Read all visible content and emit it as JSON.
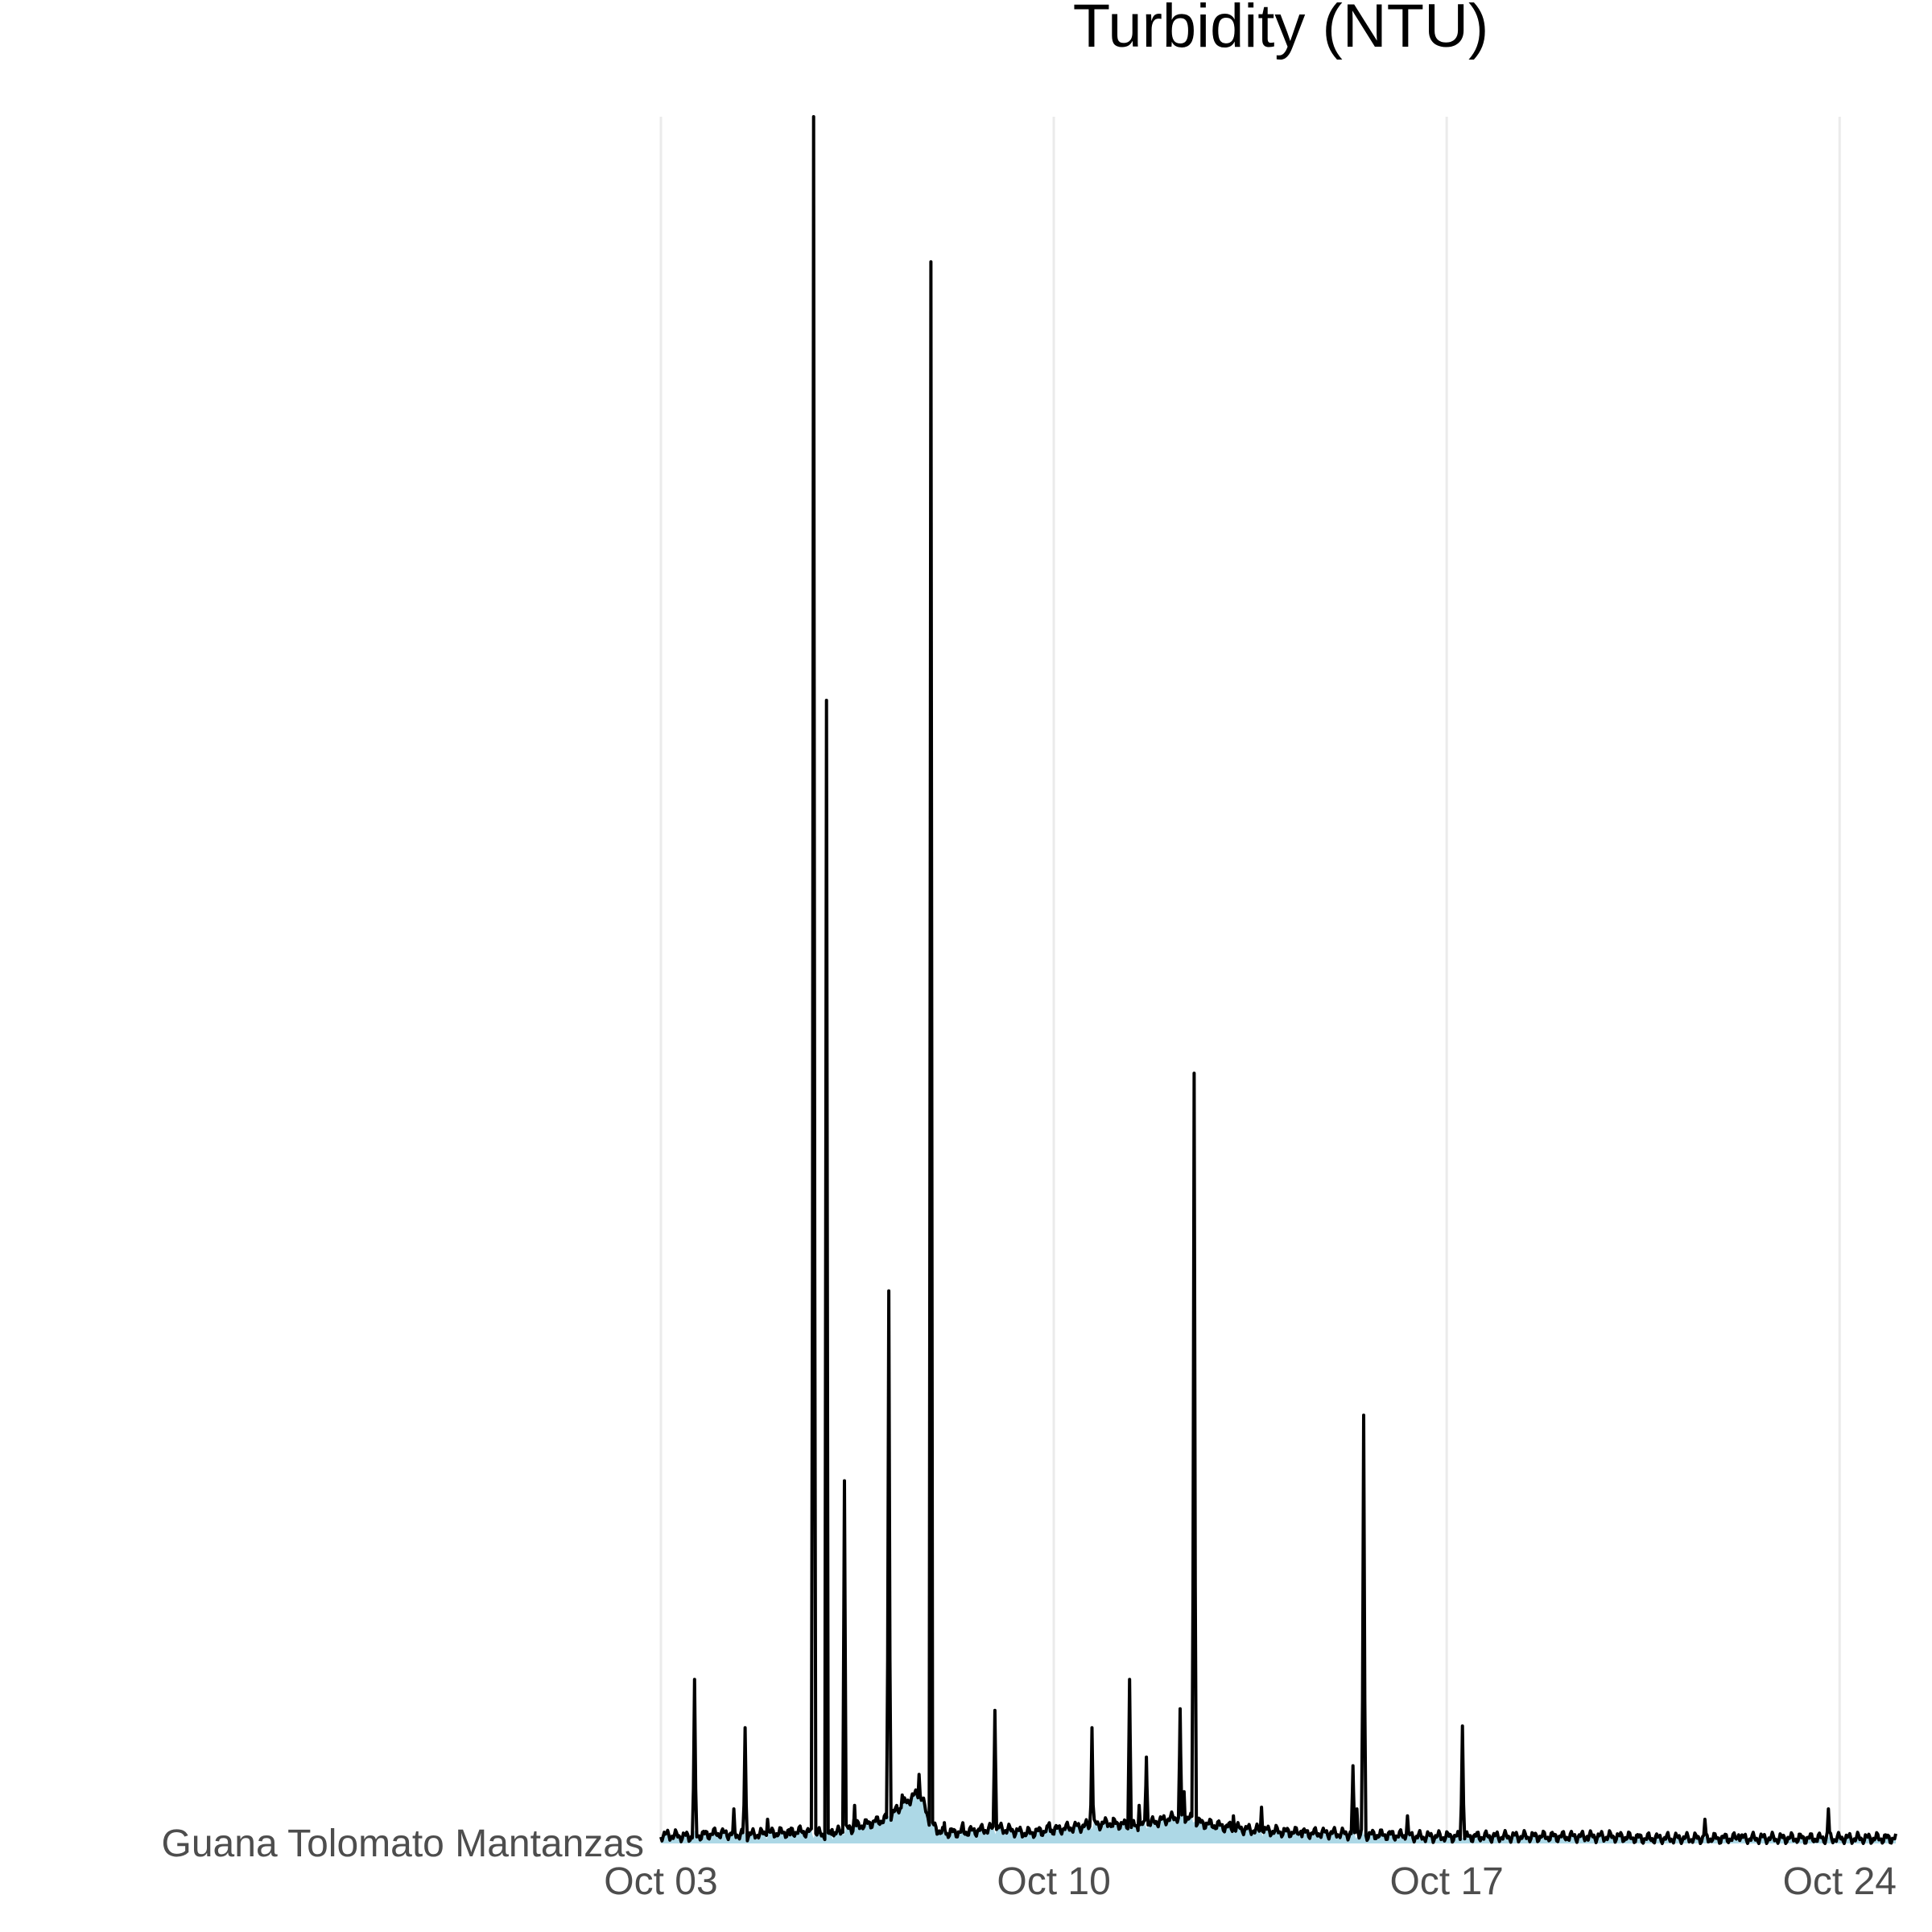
{
  "chart_data": {
    "type": "area",
    "title": "Turbidity (NTU)",
    "row_label": "Guana Tolomato Mantanzas",
    "x_ticks": [
      "Oct 03",
      "Oct 10",
      "Oct 17",
      "Oct 24"
    ],
    "x_tick_days": [
      3,
      10,
      17,
      24
    ],
    "xlim": [
      3,
      25
    ],
    "ylim": [
      0,
      1000
    ],
    "colors": {
      "fill": "#add8e6",
      "line": "#000000",
      "grid": "#ebebeb"
    },
    "grid": "vertical major only",
    "legend": "none",
    "baseline": [
      [
        3.0,
        5
      ],
      [
        3.5,
        4
      ],
      [
        4.0,
        6
      ],
      [
        4.5,
        5
      ],
      [
        5.0,
        6
      ],
      [
        5.5,
        7
      ],
      [
        6.0,
        5
      ],
      [
        6.5,
        10
      ],
      [
        7.0,
        14
      ],
      [
        7.3,
        22
      ],
      [
        7.6,
        30
      ],
      [
        7.8,
        12
      ],
      [
        8.0,
        6
      ],
      [
        8.5,
        7
      ],
      [
        9.0,
        9
      ],
      [
        9.5,
        6
      ],
      [
        10.0,
        8
      ],
      [
        10.5,
        10
      ],
      [
        11.0,
        12
      ],
      [
        11.5,
        10
      ],
      [
        12.0,
        14
      ],
      [
        12.3,
        16
      ],
      [
        12.6,
        12
      ],
      [
        13.0,
        10
      ],
      [
        13.5,
        8
      ],
      [
        14.0,
        7
      ],
      [
        14.5,
        6
      ],
      [
        15.0,
        6
      ],
      [
        15.5,
        5
      ],
      [
        16.0,
        5
      ],
      [
        16.5,
        4
      ],
      [
        17.0,
        4
      ],
      [
        17.5,
        4
      ],
      [
        18.0,
        4
      ],
      [
        18.5,
        4
      ],
      [
        19.0,
        4
      ],
      [
        19.5,
        4
      ],
      [
        20.0,
        4
      ],
      [
        20.5,
        3
      ],
      [
        21.0,
        3
      ],
      [
        21.5,
        3
      ],
      [
        22.0,
        3
      ],
      [
        22.5,
        3
      ],
      [
        23.0,
        3
      ],
      [
        23.5,
        3
      ],
      [
        24.0,
        3
      ],
      [
        24.5,
        3
      ],
      [
        25.0,
        3
      ]
    ],
    "spikes": [
      [
        3.6,
        95
      ],
      [
        4.3,
        20
      ],
      [
        4.5,
        67
      ],
      [
        4.9,
        14
      ],
      [
        5.3,
        5
      ],
      [
        5.72,
        1000
      ],
      [
        5.95,
        662
      ],
      [
        6.05,
        8
      ],
      [
        6.27,
        210
      ],
      [
        6.45,
        22
      ],
      [
        7.06,
        320
      ],
      [
        7.3,
        28
      ],
      [
        7.6,
        40
      ],
      [
        7.81,
        916
      ],
      [
        8.05,
        12
      ],
      [
        8.38,
        12
      ],
      [
        8.95,
        77
      ],
      [
        9.4,
        9
      ],
      [
        9.92,
        12
      ],
      [
        10.68,
        67
      ],
      [
        11.05,
        10
      ],
      [
        11.35,
        95
      ],
      [
        11.52,
        22
      ],
      [
        11.65,
        50
      ],
      [
        12.25,
        78
      ],
      [
        12.32,
        30
      ],
      [
        12.5,
        446
      ],
      [
        13.2,
        16
      ],
      [
        13.7,
        21
      ],
      [
        14.4,
        7
      ],
      [
        15.33,
        45
      ],
      [
        15.4,
        20
      ],
      [
        15.52,
        248
      ],
      [
        16.3,
        16
      ],
      [
        17.28,
        68
      ],
      [
        19.5,
        4
      ],
      [
        21.6,
        14
      ],
      [
        22.2,
        5
      ],
      [
        23.8,
        20
      ]
    ]
  }
}
